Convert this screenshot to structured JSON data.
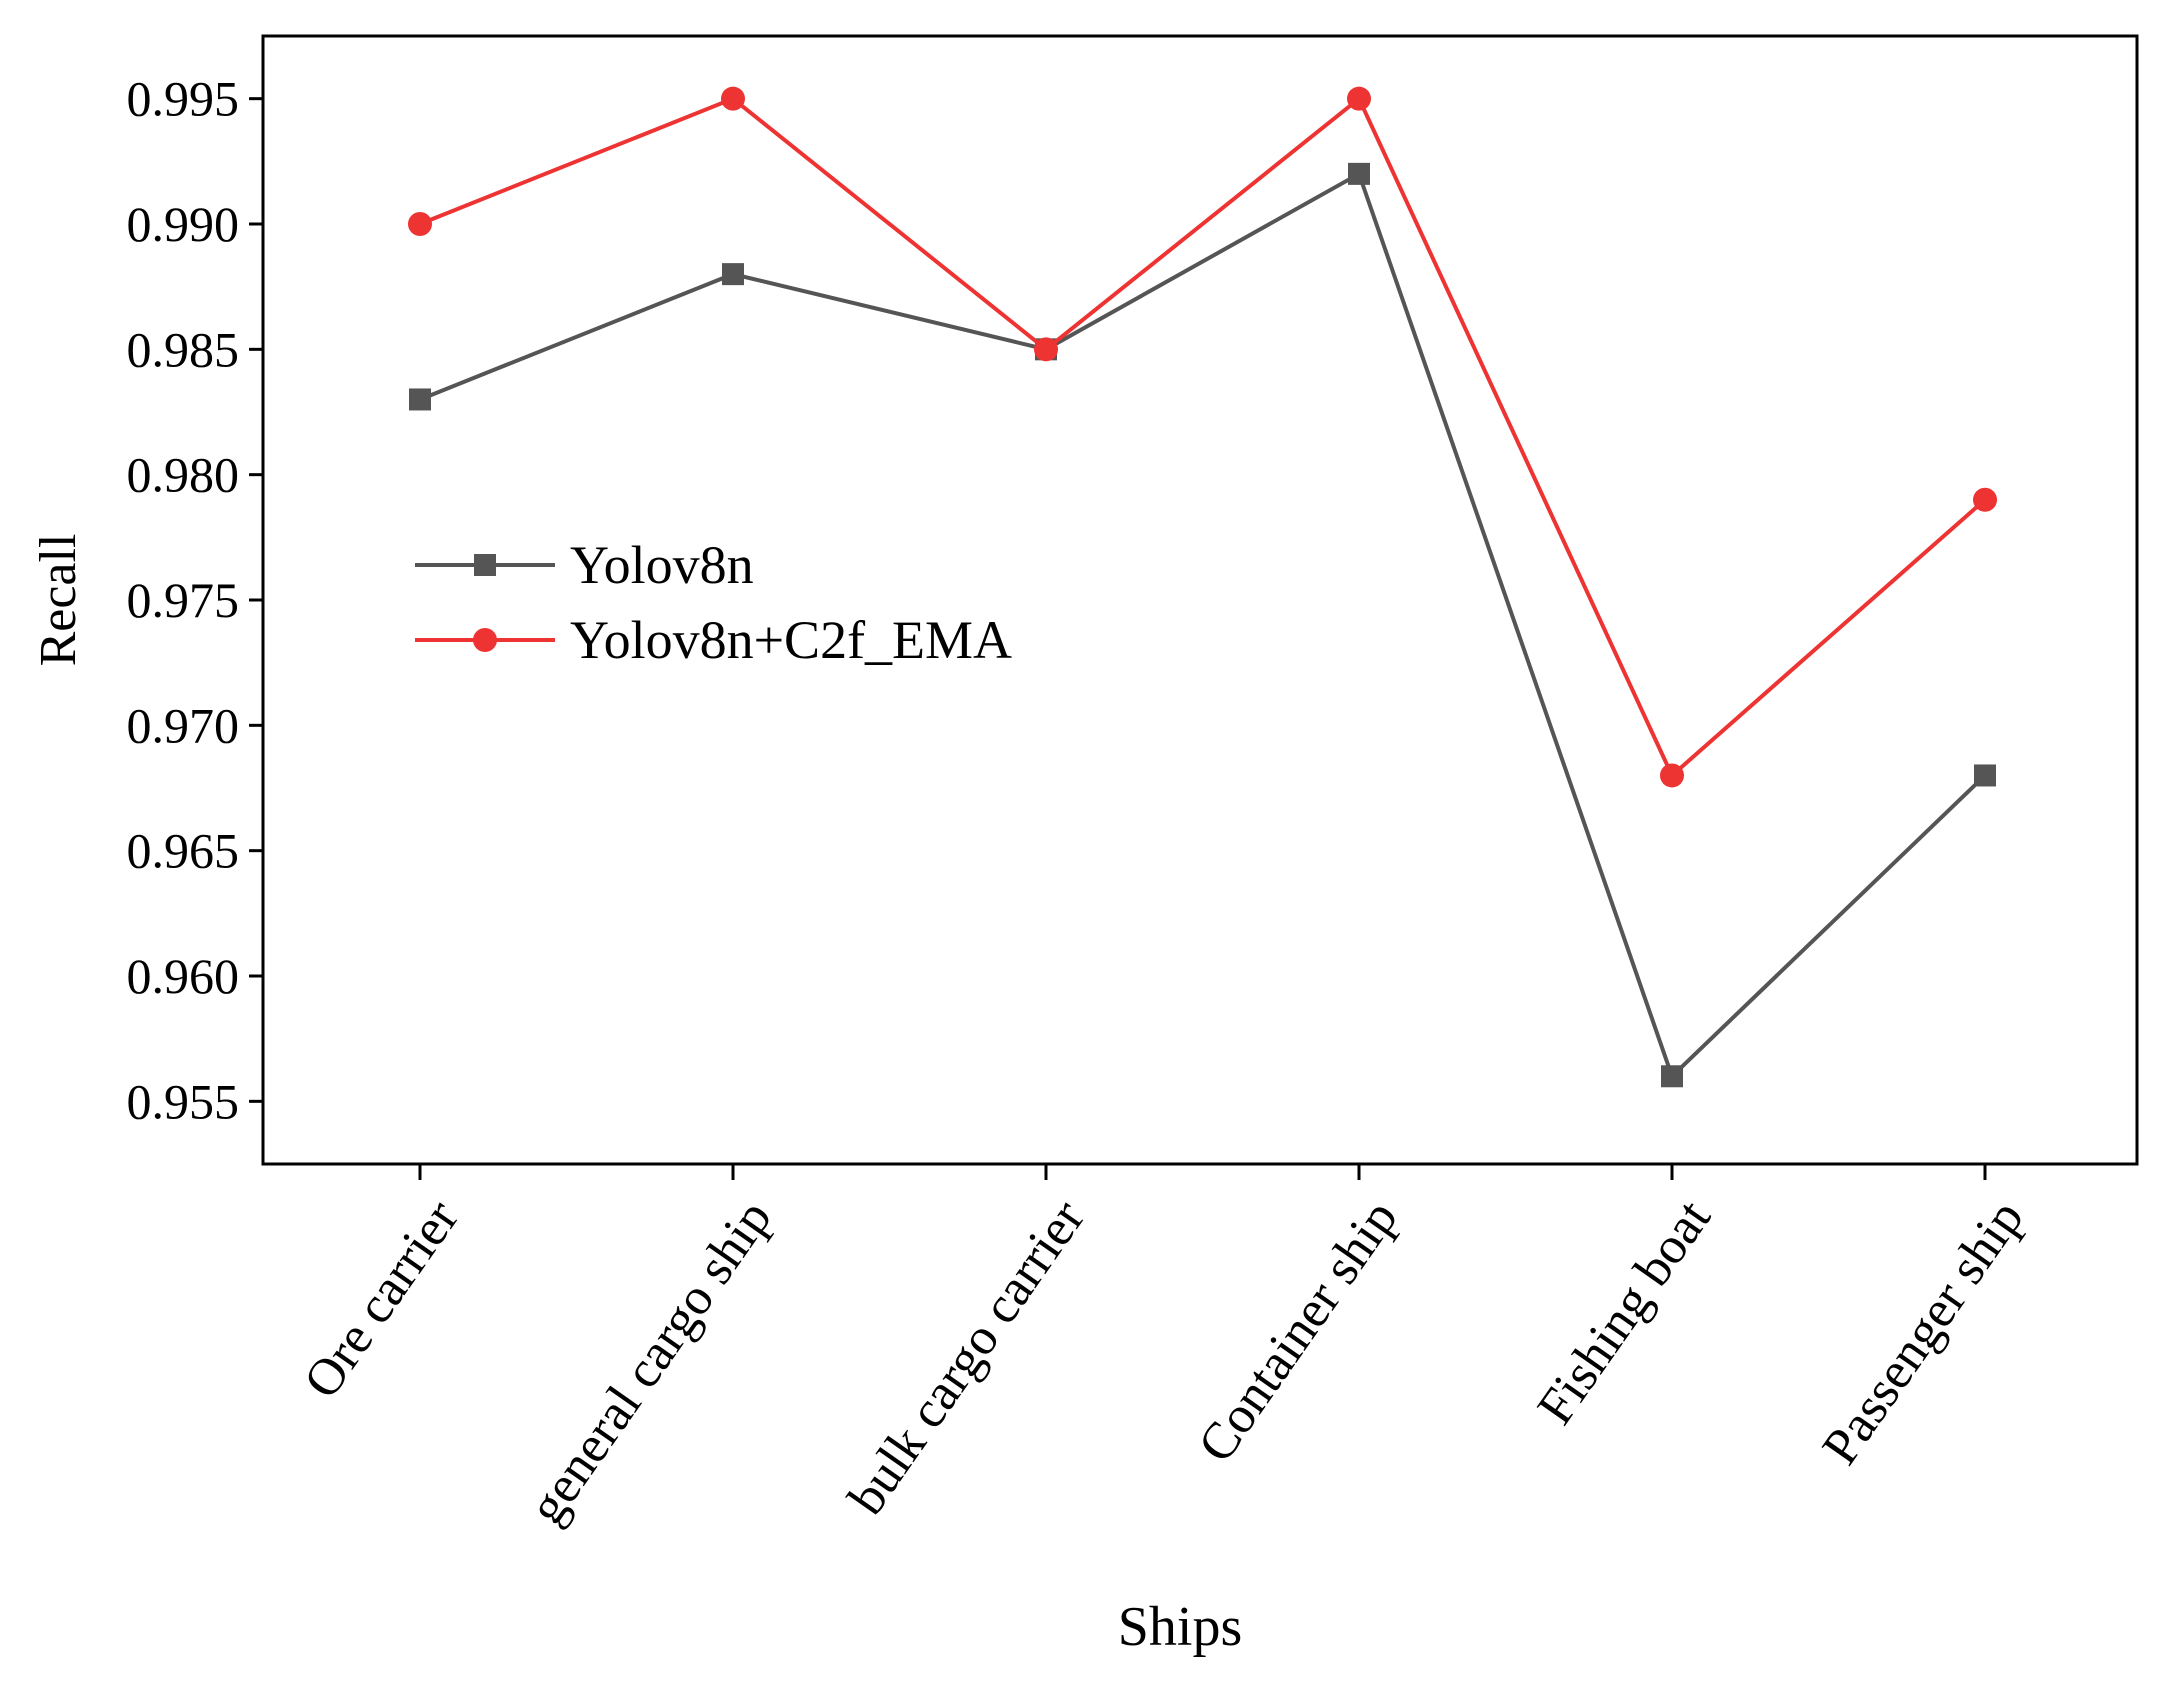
{
  "chart_data": {
    "type": "line",
    "title": "",
    "xlabel": "Ships",
    "ylabel": "Recall",
    "categories": [
      "Ore carrier",
      "general cargo ship",
      "bulk cargo carrier",
      "Container ship",
      "Fishing boat",
      "Passenger ship"
    ],
    "ylim": [
      0.9525,
      0.9975
    ],
    "yticks": [
      "0.955",
      "0.960",
      "0.965",
      "0.970",
      "0.975",
      "0.980",
      "0.985",
      "0.990",
      "0.995"
    ],
    "legend_position": "upper-left-center",
    "series": [
      {
        "name": "Yolov8n",
        "color": "#555555",
        "marker": "square",
        "values": [
          0.983,
          0.988,
          0.985,
          0.992,
          0.956,
          0.968
        ]
      },
      {
        "name": "Yolov8n+C2f_EMA",
        "color": "#ee3333",
        "marker": "circle",
        "values": [
          0.99,
          0.995,
          0.985,
          0.995,
          0.968,
          0.979
        ]
      }
    ]
  }
}
